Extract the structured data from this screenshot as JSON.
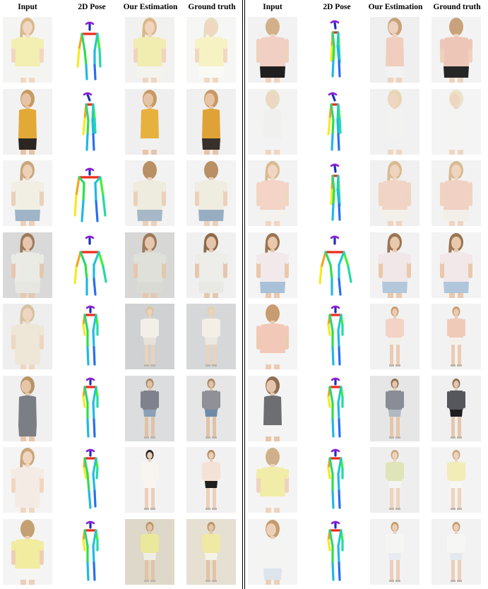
{
  "headers": [
    "Input",
    "2D Pose",
    "Our Estimation",
    "Ground truth"
  ],
  "left_panel": {
    "rows": [
      {
        "input": {
          "bg": "#f4f4f2",
          "top": "#f3eeb2",
          "bottom": "#f5f5f0",
          "hair": "#d9b88a",
          "skin": "#f1d7c1",
          "view": "front"
        },
        "pose": "front-arms-down",
        "estimation": {
          "bg": "#f1f1ef",
          "top": "#f1ecb0",
          "bottom": "#f4f4ef",
          "hair": "#d9b88a",
          "skin": "#f0d4bd",
          "view": "front"
        },
        "ground_truth": {
          "bg": "#f6f6f4",
          "top": "#f6f2c4",
          "bottom": "#fafaf5",
          "hair": "#e8dcc0",
          "skin": "#f1d7c1",
          "view": "front"
        }
      },
      {
        "input": {
          "bg": "#f2f2f2",
          "top": "#e2a937",
          "bottom": "#2c2622",
          "hair": "#c79a64",
          "skin": "#e7c3a5",
          "view": "side"
        },
        "pose": "side-left",
        "estimation": {
          "bg": "#efefef",
          "top": "#e7b13d",
          "bottom": "#f1f1f1",
          "hair": "#c79a64",
          "skin": "#e8c4a6",
          "view": "side"
        },
        "ground_truth": {
          "bg": "#f0f0f0",
          "top": "#dfa236",
          "bottom": "#38302a",
          "hair": "#c79a64",
          "skin": "#e8c4a6",
          "view": "side"
        }
      },
      {
        "input": {
          "bg": "#f4f4f4",
          "top": "#f1efe4",
          "bottom": "#9fb4c6",
          "hair": "#caa77a",
          "skin": "#ecd0b8",
          "view": "front"
        },
        "pose": "front-wide",
        "estimation": {
          "bg": "#f2f2f2",
          "top": "#eeebdf",
          "bottom": "#a7b8c6",
          "hair": "#b89064",
          "skin": "#ecd0b8",
          "view": "back"
        },
        "ground_truth": {
          "bg": "#f3f3f3",
          "top": "#efece0",
          "bottom": "#97aec2",
          "hair": "#b89064",
          "skin": "#ecd0b8",
          "view": "back"
        }
      },
      {
        "input": {
          "bg": "#d9d9d9",
          "top": "#ebebe6",
          "bottom": "#e7e7e2",
          "hair": "#9c7a5a",
          "skin": "#e6c7ad",
          "view": "front"
        },
        "pose": "front-arms-out",
        "estimation": {
          "bg": "#d7d7d6",
          "top": "#e0e0da",
          "bottom": "#dadad4",
          "hair": "#9c7a5a",
          "skin": "#e6c7ad",
          "view": "front"
        },
        "ground_truth": {
          "bg": "#f0f0f0",
          "top": "#ededea",
          "bottom": "#e8e8e4",
          "hair": "#8e6a4a",
          "skin": "#e6c7ad",
          "view": "front"
        }
      },
      {
        "input": {
          "bg": "#eeeeee",
          "top": "#eee6d6",
          "bottom": "#eee6d6",
          "hair": "#d5c3a1",
          "skin": "#eed6c1",
          "view": "front"
        },
        "pose": "full-front",
        "estimation": {
          "bg": "#cfd1d3",
          "top": "#f2efe8",
          "bottom": "#e6e2da",
          "hair": "#d8c29a",
          "skin": "#ead2bd",
          "view": "full"
        },
        "ground_truth": {
          "bg": "#d5d7d9",
          "top": "#f4efe6",
          "bottom": "#ece8e0",
          "hair": "#e2d2b2",
          "skin": "#ead2bd",
          "view": "full"
        }
      },
      {
        "input": {
          "bg": "#f0f0f0",
          "top": "#7c7e86",
          "bottom": "#7c7e86",
          "hair": "#b99366",
          "skin": "#e6c6a9",
          "view": "side"
        },
        "pose": "full-front",
        "estimation": {
          "bg": "#dcdddf",
          "top": "#7f828c",
          "bottom": "#8aa0b6",
          "hair": "#a98a68",
          "skin": "#e2c2a5",
          "view": "full"
        },
        "ground_truth": {
          "bg": "#e6e6e6",
          "top": "#8f9196",
          "bottom": "#6e8aa6",
          "hair": "#a38664",
          "skin": "#e2c2a5",
          "view": "full"
        }
      },
      {
        "input": {
          "bg": "#f4f4f4",
          "top": "#f4ece4",
          "bottom": "#f4ece4",
          "hair": "#caa67a",
          "skin": "#f1d6bf",
          "view": "front"
        },
        "pose": "full-walk",
        "estimation": {
          "bg": "#f2f2f2",
          "top": "#f8f4ef",
          "bottom": "#f8f4ef",
          "hair": "#2a2420",
          "skin": "#eccfb8",
          "view": "full"
        },
        "ground_truth": {
          "bg": "#f1f1f1",
          "top": "#f4e2d6",
          "bottom": "#1f1f1f",
          "hair": "#b08a60",
          "skin": "#eccfb8",
          "view": "full"
        }
      },
      {
        "input": {
          "bg": "#f4f4f4",
          "top": "#f1ec9f",
          "bottom": "#f5f5f2",
          "hair": "#c4a072",
          "skin": "#eccfb6",
          "view": "back"
        },
        "pose": "full-front",
        "estimation": {
          "bg": "#ddd8c9",
          "top": "#eae89a",
          "bottom": "#f0ede4",
          "hair": "#b99366",
          "skin": "#e2c3a6",
          "view": "full"
        },
        "ground_truth": {
          "bg": "#e5e0d2",
          "top": "#efe9a4",
          "bottom": "#f5f2e8",
          "hair": "#b99366",
          "skin": "#e2c3a6",
          "view": "full"
        }
      }
    ]
  },
  "right_panel": {
    "rows": [
      {
        "input": {
          "bg": "#f2f2f2",
          "top": "#f1cfc2",
          "bottom": "#1f1f1f",
          "hair": "#d1b08a",
          "skin": "#efd2bd",
          "view": "back"
        },
        "pose": "side-right",
        "estimation": {
          "bg": "#efefef",
          "top": "#f0cdbf",
          "bottom": "#f2f2f2",
          "hair": "#c8a27a",
          "skin": "#efd2bd",
          "view": "side"
        },
        "ground_truth": {
          "bg": "#f3f3f3",
          "top": "#eec6b8",
          "bottom": "#262626",
          "hair": "#c8a27a",
          "skin": "#efd2bd",
          "view": "back"
        }
      },
      {
        "input": {
          "bg": "#f3f3f3",
          "top": "#f0f0ee",
          "bottom": "#f3f3f3",
          "hair": "#e8dcc0",
          "skin": "#efd6c2",
          "view": "side"
        },
        "pose": "side-left",
        "estimation": {
          "bg": "#f1f1f1",
          "top": "#f2f2f0",
          "bottom": "#f1f1f1",
          "hair": "#e6d6b2",
          "skin": "#efd6c2",
          "view": "side"
        },
        "ground_truth": {
          "bg": "#f4f4f4",
          "top": "#f4f4f2",
          "bottom": "#f4f4f4",
          "hair": "#ede2c8",
          "skin": "#efd6c2",
          "view": "side"
        }
      },
      {
        "input": {
          "bg": "#f2f2f2",
          "top": "#f3d4c6",
          "bottom": "#f4f2ee",
          "hair": "#d8bb92",
          "skin": "#f0d6c2",
          "view": "front"
        },
        "pose": "side-right",
        "estimation": {
          "bg": "#f0f0f0",
          "top": "#f2d4c6",
          "bottom": "#f3f0ea",
          "hair": "#d8bb92",
          "skin": "#efd4bf",
          "view": "front"
        },
        "ground_truth": {
          "bg": "#f2f2f2",
          "top": "#f1d1c3",
          "bottom": "#f2efe8",
          "hair": "#d8bb92",
          "skin": "#efd4bf",
          "view": "front"
        }
      },
      {
        "input": {
          "bg": "#f4f4f4",
          "top": "#f2e9ea",
          "bottom": "#a8c0d8",
          "hair": "#9a7552",
          "skin": "#e9c8ab",
          "view": "front"
        },
        "pose": "front-arms-out",
        "estimation": {
          "bg": "#f2f2f2",
          "top": "#f1e6e8",
          "bottom": "#b4c8dc",
          "hair": "#9a7552",
          "skin": "#e9c8ab",
          "view": "front"
        },
        "ground_truth": {
          "bg": "#f3f3f3",
          "top": "#f2e7e9",
          "bottom": "#b0c6da",
          "hair": "#9a7552",
          "skin": "#e9c8ab",
          "view": "front"
        }
      },
      {
        "input": {
          "bg": "#f4f4f4",
          "top": "#f2c9b8",
          "bottom": "#f4f4f4",
          "hair": "#c79c70",
          "skin": "#eccbb2",
          "view": "back"
        },
        "pose": "full-front",
        "estimation": {
          "bg": "#f1f1f1",
          "top": "#f2d3c6",
          "bottom": "#f2efe8",
          "hair": "#c79c70",
          "skin": "#eccbb2",
          "view": "full"
        },
        "ground_truth": {
          "bg": "#f2f2f2",
          "top": "#f0cab9",
          "bottom": "#f4f1ea",
          "hair": "#c79c70",
          "skin": "#eccbb2",
          "view": "full"
        }
      },
      {
        "input": {
          "bg": "#f4f4f4",
          "top": "#6c6e72",
          "bottom": "#f4f4f4",
          "hair": "#8e6e52",
          "skin": "#e6c6aa",
          "view": "side"
        },
        "pose": "full-front",
        "estimation": {
          "bg": "#e6e6e6",
          "top": "#8a8d96",
          "bottom": "#b2b8c2",
          "hair": "#8e6e52",
          "skin": "#e6c6aa",
          "view": "full"
        },
        "ground_truth": {
          "bg": "#f0f0f0",
          "top": "#55575c",
          "bottom": "#1f1f22",
          "hair": "#8e6e52",
          "skin": "#e6c6aa",
          "view": "full"
        }
      },
      {
        "input": {
          "bg": "#f4f4f4",
          "top": "#f1eda9",
          "bottom": "#f4f4f4",
          "hair": "#d0b08a",
          "skin": "#eed3bd",
          "view": "back"
        },
        "pose": "full-front",
        "estimation": {
          "bg": "#eeeeee",
          "top": "#dfe5b8",
          "bottom": "#f4f4f2",
          "hair": "#c9a87e",
          "skin": "#eed3bd",
          "view": "full"
        },
        "ground_truth": {
          "bg": "#f3f3f3",
          "top": "#f2ecb6",
          "bottom": "#f6f6f2",
          "hair": "#c9a87e",
          "skin": "#eed3bd",
          "view": "full"
        }
      },
      {
        "input": {
          "bg": "#f4f4f4",
          "top": "#f4f4f2",
          "bottom": "#dde4ec",
          "hair": "#c49c6c",
          "skin": "#eccfb8",
          "view": "side"
        },
        "pose": "full-front",
        "estimation": {
          "bg": "#f2f2f2",
          "top": "#f5f5f3",
          "bottom": "#e8ecf0",
          "hair": "#c49c6c",
          "skin": "#eccfb8",
          "view": "full"
        },
        "ground_truth": {
          "bg": "#f2f2f2",
          "top": "#f6f6f4",
          "bottom": "#e4e9ee",
          "hair": "#c49c6c",
          "skin": "#eccfb8",
          "view": "full"
        }
      }
    ]
  },
  "pose_colors": {
    "head": "#8b1fd6",
    "neck": "#1f2fb8",
    "shoulders": "#ee2b1c",
    "right_arm": "#f3a51c",
    "right_forearm": "#f3ec21",
    "left_arm": "#3ff22f",
    "left_forearm": "#22d9a5",
    "right_thigh": "#2be04a",
    "right_shin": "#22c9c9",
    "left_thigh": "#1fb8e8",
    "left_shin": "#2a6ef0",
    "hip": "#2cd67a"
  }
}
